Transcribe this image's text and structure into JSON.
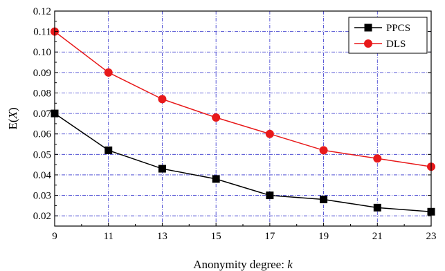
{
  "chart_data": {
    "type": "line",
    "x": [
      9,
      11,
      13,
      15,
      17,
      19,
      21,
      23
    ],
    "series": [
      {
        "name": "PPCS",
        "color": "#000000",
        "marker": "square",
        "values": [
          0.07,
          0.052,
          0.043,
          0.038,
          0.03,
          0.028,
          0.024,
          0.022
        ]
      },
      {
        "name": "DLS",
        "color": "#e8191a",
        "marker": "circle",
        "values": [
          0.11,
          0.09,
          0.077,
          0.068,
          0.06,
          0.052,
          0.048,
          0.044
        ]
      }
    ],
    "xlabel_prefix": "Anonymity degree: ",
    "xlabel_var": "k",
    "ylabel_prefix": "E(",
    "ylabel_var": "X",
    "ylabel_suffix": ")",
    "xlim": [
      9,
      23
    ],
    "ylim": [
      0.015,
      0.12
    ],
    "xticks": [
      "9",
      "11",
      "13",
      "15",
      "17",
      "19",
      "21",
      "23"
    ],
    "yticks": [
      "0.02",
      "0.03",
      "0.04",
      "0.05",
      "0.06",
      "0.07",
      "0.08",
      "0.09",
      "0.10",
      "0.11",
      "0.12"
    ],
    "grid": true,
    "grid_color": "#3333cc",
    "legend_position": "top-right"
  }
}
